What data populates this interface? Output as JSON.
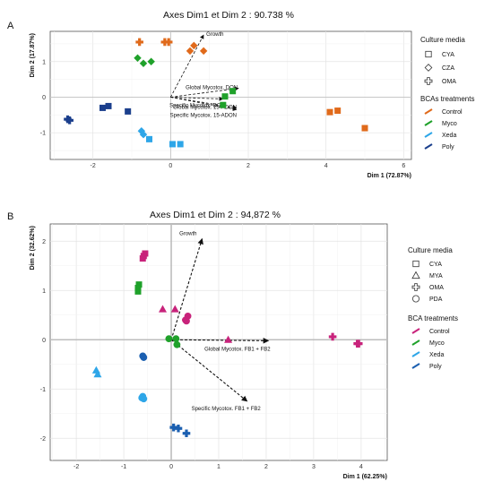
{
  "chart_data": [
    {
      "panel_label": "A",
      "type": "scatter",
      "title": "Axes Dim1 et Dim 2 : 90.738 %",
      "xlabel": "Dim 1 (72.87%)",
      "ylabel": "Dim 2 (17.87%)",
      "xlim": [
        -3.1,
        6.2
      ],
      "ylim": [
        -1.75,
        1.85
      ],
      "x_ticks": [
        -2,
        0,
        2,
        4,
        6
      ],
      "y_ticks": [
        -1,
        0,
        1
      ],
      "grid": true,
      "legend": {
        "position": "right",
        "shape_title": "Culture media",
        "shapes": [
          {
            "label": "CYA",
            "shape": "square-open"
          },
          {
            "label": "CZA",
            "shape": "diamond-open"
          },
          {
            "label": "OMA",
            "shape": "cross-open"
          }
        ],
        "color_title": "BCAs treatments",
        "colors": [
          {
            "label": "Control",
            "color": "#e06a1b"
          },
          {
            "label": "Myco",
            "color": "#1fa12a"
          },
          {
            "label": "Xeda",
            "color": "#2ea6e8"
          },
          {
            "label": "Poly",
            "color": "#1b3f8c"
          }
        ]
      },
      "vectors": [
        {
          "label": "Growth",
          "x": 0.85,
          "y": 1.75
        },
        {
          "label": "Global Mycotox. DON",
          "x": 1.75,
          "y": 0.25
        },
        {
          "label": "Specific Mycotox. DON",
          "x": 1.35,
          "y": -0.05
        },
        {
          "label": "Global Mycotox. 15-ADON",
          "x": 1.7,
          "y": -0.3
        },
        {
          "label": "Specific Mycotox. 15-ADON",
          "x": 1.7,
          "y": -0.35
        }
      ],
      "series": [
        {
          "name": "Control",
          "color": "#e06a1b",
          "points": [
            {
              "x": -0.8,
              "y": 1.55,
              "shape": "cross"
            },
            {
              "x": -0.15,
              "y": 1.55,
              "shape": "cross"
            },
            {
              "x": -0.05,
              "y": 1.55,
              "shape": "cross"
            },
            {
              "x": 0.5,
              "y": 1.3,
              "shape": "diamond"
            },
            {
              "x": 0.6,
              "y": 1.45,
              "shape": "diamond"
            },
            {
              "x": 0.85,
              "y": 1.3,
              "shape": "diamond"
            },
            {
              "x": 4.1,
              "y": -0.42,
              "shape": "square"
            },
            {
              "x": 4.3,
              "y": -0.38,
              "shape": "square"
            },
            {
              "x": 5.0,
              "y": -0.87,
              "shape": "square"
            }
          ]
        },
        {
          "name": "Myco",
          "color": "#1fa12a",
          "points": [
            {
              "x": -0.85,
              "y": 1.1,
              "shape": "diamond"
            },
            {
              "x": -0.7,
              "y": 0.95,
              "shape": "diamond"
            },
            {
              "x": -0.5,
              "y": 1.0,
              "shape": "diamond"
            },
            {
              "x": 1.6,
              "y": 0.17,
              "shape": "square"
            },
            {
              "x": 1.4,
              "y": 0.02,
              "shape": "square"
            },
            {
              "x": 1.35,
              "y": -0.22,
              "shape": "square"
            }
          ]
        },
        {
          "name": "Xeda",
          "color": "#2ea6e8",
          "points": [
            {
              "x": -0.75,
              "y": -0.95,
              "shape": "diamond"
            },
            {
              "x": -0.7,
              "y": -1.05,
              "shape": "diamond"
            },
            {
              "x": -0.55,
              "y": -1.18,
              "shape": "square"
            },
            {
              "x": 0.05,
              "y": -1.32,
              "shape": "square"
            },
            {
              "x": 0.25,
              "y": -1.32,
              "shape": "square"
            }
          ]
        },
        {
          "name": "Poly",
          "color": "#1b3f8c",
          "points": [
            {
              "x": -2.65,
              "y": -0.62,
              "shape": "cross"
            },
            {
              "x": -2.6,
              "y": -0.65,
              "shape": "cross"
            },
            {
              "x": -1.6,
              "y": -0.25,
              "shape": "square"
            },
            {
              "x": -1.75,
              "y": -0.3,
              "shape": "square"
            },
            {
              "x": -1.1,
              "y": -0.4,
              "shape": "square"
            }
          ]
        }
      ]
    },
    {
      "panel_label": "B",
      "type": "scatter",
      "title": "Axes Dim1 et Dim 2 : 94,872 %",
      "xlabel": "Dim 1 (62.25%)",
      "ylabel": "Dim 2 (32.62%)",
      "xlim": [
        -2.55,
        4.55
      ],
      "ylim": [
        -2.45,
        2.35
      ],
      "x_ticks": [
        -2,
        -1,
        0,
        1,
        2,
        3,
        4
      ],
      "y_ticks": [
        -2,
        -1,
        0,
        1,
        2
      ],
      "grid": true,
      "legend": {
        "position": "right",
        "shape_title": "Culture media",
        "shapes": [
          {
            "label": "CYA",
            "shape": "square-open"
          },
          {
            "label": "MYA",
            "shape": "triangle-open"
          },
          {
            "label": "OMA",
            "shape": "cross-open"
          },
          {
            "label": "PDA",
            "shape": "circle-open"
          }
        ],
        "color_title": "BCA treatments",
        "colors": [
          {
            "label": "Control",
            "color": "#c8237b"
          },
          {
            "label": "Myco",
            "color": "#1fa12a"
          },
          {
            "label": "Xeda",
            "color": "#2ea6e8"
          },
          {
            "label": "Poly",
            "color": "#1b5fb0"
          }
        ]
      },
      "vectors": [
        {
          "label": "Growth",
          "x": 0.65,
          "y": 2.05
        },
        {
          "label": "Global Mycotox. FB1 + FB2",
          "x": 2.05,
          "y": -0.02
        },
        {
          "label": "Specific Mycotox. FB1 + FB2",
          "x": 1.6,
          "y": -1.25
        }
      ],
      "series": [
        {
          "name": "Control",
          "color": "#c8237b",
          "points": [
            {
              "x": -0.55,
              "y": 1.75,
              "shape": "square"
            },
            {
              "x": -0.58,
              "y": 1.7,
              "shape": "square"
            },
            {
              "x": -0.6,
              "y": 1.65,
              "shape": "square"
            },
            {
              "x": -0.18,
              "y": 0.62,
              "shape": "triangle"
            },
            {
              "x": 0.08,
              "y": 0.62,
              "shape": "triangle"
            },
            {
              "x": 1.2,
              "y": 0.0,
              "shape": "triangle"
            },
            {
              "x": 0.35,
              "y": 0.48,
              "shape": "circle"
            },
            {
              "x": 0.3,
              "y": 0.4,
              "shape": "circle"
            },
            {
              "x": 0.32,
              "y": 0.38,
              "shape": "circle"
            },
            {
              "x": 3.4,
              "y": 0.06,
              "shape": "cross"
            },
            {
              "x": 3.92,
              "y": -0.08,
              "shape": "cross"
            },
            {
              "x": 3.95,
              "y": -0.08,
              "shape": "cross"
            }
          ]
        },
        {
          "name": "Myco",
          "color": "#1fa12a",
          "points": [
            {
              "x": -0.68,
              "y": 1.12,
              "shape": "square"
            },
            {
              "x": -0.7,
              "y": 1.05,
              "shape": "square"
            },
            {
              "x": -0.7,
              "y": 0.98,
              "shape": "square"
            },
            {
              "x": -0.05,
              "y": 0.02,
              "shape": "circle"
            },
            {
              "x": 0.1,
              "y": 0.02,
              "shape": "circle"
            },
            {
              "x": 0.12,
              "y": -0.1,
              "shape": "circle"
            }
          ]
        },
        {
          "name": "Xeda",
          "color": "#2ea6e8",
          "points": [
            {
              "x": -1.58,
              "y": -0.62,
              "shape": "triangle"
            },
            {
              "x": -1.55,
              "y": -0.7,
              "shape": "triangle"
            },
            {
              "x": -0.6,
              "y": -1.15,
              "shape": "circle"
            },
            {
              "x": -0.62,
              "y": -1.18,
              "shape": "circle"
            },
            {
              "x": -0.58,
              "y": -1.2,
              "shape": "circle"
            }
          ]
        },
        {
          "name": "Poly",
          "color": "#1b5fb0",
          "points": [
            {
              "x": -0.6,
              "y": -0.33,
              "shape": "circle"
            },
            {
              "x": -0.58,
              "y": -0.36,
              "shape": "circle"
            },
            {
              "x": 0.05,
              "y": -1.78,
              "shape": "cross"
            },
            {
              "x": 0.15,
              "y": -1.8,
              "shape": "cross"
            },
            {
              "x": 0.32,
              "y": -1.9,
              "shape": "cross"
            }
          ]
        }
      ]
    }
  ]
}
